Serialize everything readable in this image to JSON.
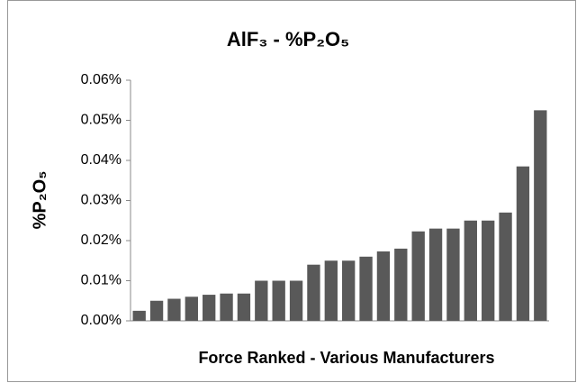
{
  "chart_data": {
    "type": "bar",
    "title": "AlF₃ - %P₂O₅",
    "y_label": "%P₂O₅",
    "x_label": "Force Ranked - Various Manufacturers",
    "categories": [
      null,
      null,
      null,
      null,
      null,
      null,
      null,
      null,
      null,
      null,
      null,
      null,
      null,
      null,
      null,
      null,
      null,
      null,
      null,
      null,
      null,
      null,
      null,
      null
    ],
    "values": [
      0.0025,
      0.005,
      0.0055,
      0.006,
      0.0065,
      0.0068,
      0.0068,
      0.01,
      0.01,
      0.01,
      0.014,
      0.015,
      0.015,
      0.016,
      0.0173,
      0.018,
      0.0223,
      0.023,
      0.023,
      0.025,
      0.025,
      0.027,
      0.0385,
      0.0525
    ],
    "color": "#595959",
    "ylim": [
      0,
      0.06
    ],
    "yticks": [
      {
        "value": 0,
        "label": "0.00%"
      },
      {
        "value": 0.01,
        "label": "0.01%"
      },
      {
        "value": 0.02,
        "label": "0.02%"
      },
      {
        "value": 0.03,
        "label": "0.03%"
      },
      {
        "value": 0.04,
        "label": "0.04%"
      },
      {
        "value": 0.05,
        "label": "0.05%"
      },
      {
        "value": 0.06,
        "label": "0.06%"
      }
    ],
    "grid": false
  }
}
